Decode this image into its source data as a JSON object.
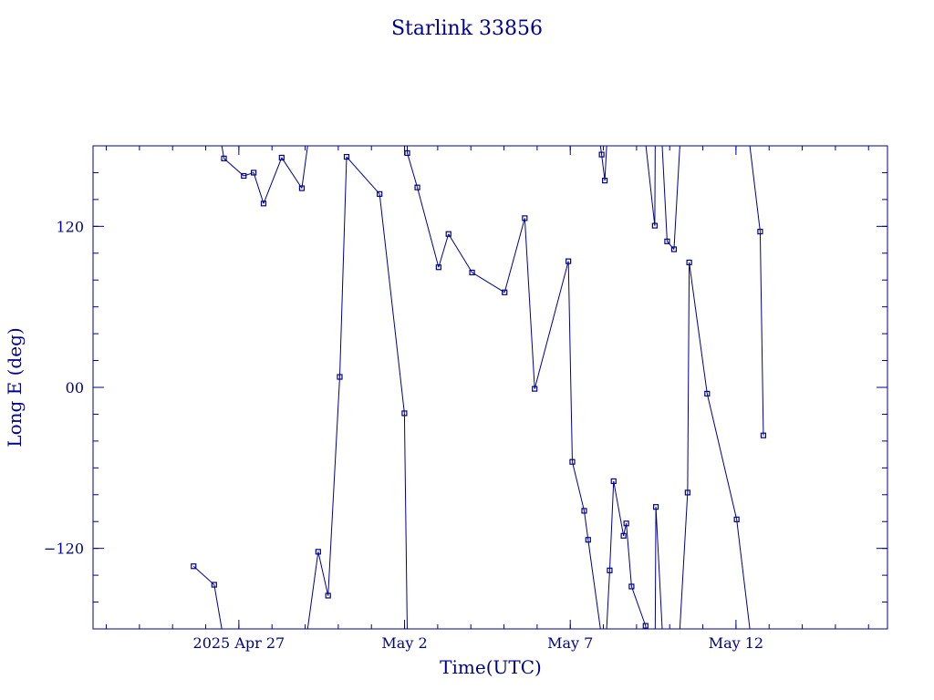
{
  "chart_data": {
    "type": "line",
    "title": "Starlink 33856",
    "xlabel": "Time(UTC)",
    "ylabel": "Long E (deg)",
    "x_unit": "days",
    "xlim": [
      "2025-04-22T14:24",
      "2025-05-16T13:43"
    ],
    "ylim": [
      -180,
      180
    ],
    "y_wrap": true,
    "grid": false,
    "x_ticks": [
      {
        "value": "2025-04-27T00:00",
        "label": "2025 Apr 27"
      },
      {
        "value": "2025-05-02T00:00",
        "label": "May  2"
      },
      {
        "value": "2025-05-07T00:00",
        "label": "May  7"
      },
      {
        "value": "2025-05-12T00:00",
        "label": "May 12"
      }
    ],
    "y_ticks": [
      {
        "value": 120,
        "label": "120"
      },
      {
        "value": 0,
        "label": "00"
      },
      {
        "value": -120,
        "label": "−120"
      }
    ],
    "series": [
      {
        "values": [
          {
            "x": "2025-04-25T15:14",
            "y": -133.3
          },
          {
            "x": "2025-04-26T06:08",
            "y": -147.1
          },
          {
            "x": "2025-04-26T13:13",
            "y": 170.6
          },
          {
            "x": "2025-04-27T03:33",
            "y": 157.6
          },
          {
            "x": "2025-04-27T10:43",
            "y": 160.0
          },
          {
            "x": "2025-04-27T17:54",
            "y": 137.0
          },
          {
            "x": "2025-04-28T07:01",
            "y": 171.2
          },
          {
            "x": "2025-04-28T21:37",
            "y": 148.4
          },
          {
            "x": "2025-04-29T09:27",
            "y": -122.5
          },
          {
            "x": "2025-04-29T16:37",
            "y": -155.2
          },
          {
            "x": "2025-04-30T01:03",
            "y": 7.8
          },
          {
            "x": "2025-04-30T06:01",
            "y": 171.8
          },
          {
            "x": "2025-05-01T05:55",
            "y": 144.1
          },
          {
            "x": "2025-05-01T23:54",
            "y": -19.3
          },
          {
            "x": "2025-05-02T01:59",
            "y": 174.6
          },
          {
            "x": "2025-05-02T09:15",
            "y": 149.0
          },
          {
            "x": "2025-05-03T00:39",
            "y": 89.5
          },
          {
            "x": "2025-05-03T07:49",
            "y": 114.3
          },
          {
            "x": "2025-05-04T00:54",
            "y": 85.6
          },
          {
            "x": "2025-05-05T00:27",
            "y": 70.8
          },
          {
            "x": "2025-05-05T15:03",
            "y": 126.1
          },
          {
            "x": "2025-05-05T22:13",
            "y": -1.1
          },
          {
            "x": "2025-05-06T22:38",
            "y": 94.0
          },
          {
            "x": "2025-05-07T01:29",
            "y": -55.5
          },
          {
            "x": "2025-05-07T10:05",
            "y": -92.0
          },
          {
            "x": "2025-05-07T12:56",
            "y": -113.6
          },
          {
            "x": "2025-05-07T22:43",
            "y": 173.5
          },
          {
            "x": "2025-05-08T01:02",
            "y": 154.1
          },
          {
            "x": "2025-05-08T04:33",
            "y": -136.4
          },
          {
            "x": "2025-05-08T07:24",
            "y": -69.9
          },
          {
            "x": "2025-05-08T14:34",
            "y": -110.6
          },
          {
            "x": "2025-05-08T16:35",
            "y": -101.4
          },
          {
            "x": "2025-05-08T20:22",
            "y": -148.4
          },
          {
            "x": "2025-05-09T06:32",
            "y": -177.7
          },
          {
            "x": "2025-05-09T13:12",
            "y": 120.5
          },
          {
            "x": "2025-05-09T14:00",
            "y": -89.1
          },
          {
            "x": "2025-05-09T22:09",
            "y": 108.8
          },
          {
            "x": "2025-05-10T03:07",
            "y": 102.9
          },
          {
            "x": "2025-05-10T12:58",
            "y": -78.4
          },
          {
            "x": "2025-05-10T14:08",
            "y": 93.1
          },
          {
            "x": "2025-05-11T03:08",
            "y": -4.7
          },
          {
            "x": "2025-05-12T00:30",
            "y": -98.4
          },
          {
            "x": "2025-05-12T17:31",
            "y": 116.1
          },
          {
            "x": "2025-05-12T19:51",
            "y": -35.8
          }
        ]
      }
    ]
  }
}
